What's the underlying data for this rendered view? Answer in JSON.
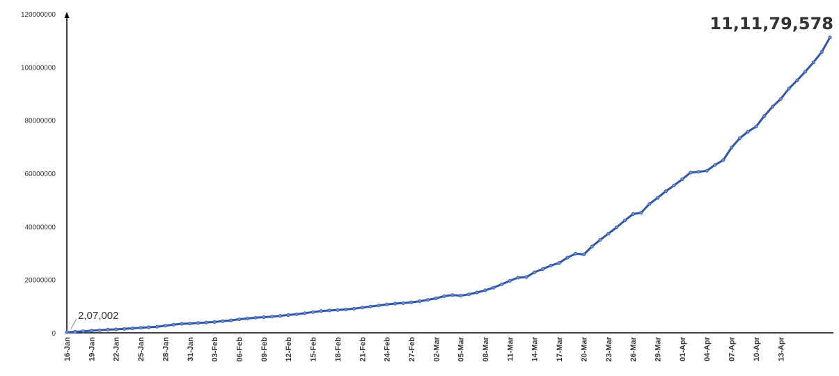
{
  "chart_data": {
    "type": "line",
    "title": "",
    "xlabel": "",
    "ylabel": "",
    "ylim": [
      0,
      120000000
    ],
    "y_ticks": [
      "0",
      "20000000",
      "40000000",
      "60000000",
      "80000000",
      "100000000",
      "120000000"
    ],
    "x_ticks": [
      "16-Jan",
      "19-Jan",
      "22-Jan",
      "25-Jan",
      "28-Jan",
      "31-Jan",
      "03-Feb",
      "06-Feb",
      "09-Feb",
      "12-Feb",
      "15-Feb",
      "18-Feb",
      "21-Feb",
      "24-Feb",
      "27-Feb",
      "02-Mar",
      "05-Mar",
      "08-Mar",
      "11-Mar",
      "14-Mar",
      "17-Mar",
      "20-Mar",
      "23-Mar",
      "26-Mar",
      "29-Mar",
      "01-Apr",
      "04-Apr",
      "07-Apr",
      "10-Apr",
      "13-Apr"
    ],
    "grid": false,
    "series_color": "#2f56a8",
    "annotations": {
      "start_value": "2,07,002",
      "end_value": "11,11,79,578"
    },
    "series": [
      {
        "values": [
          207002,
          400000,
          600000,
          800000,
          1000000,
          1200000,
          1300000,
          1500000,
          1700000,
          1900000,
          2100000,
          2300000,
          2700000,
          3100000,
          3400000,
          3500000,
          3700000,
          3900000,
          4100000,
          4400000,
          4700000,
          5100000,
          5400000,
          5700000,
          5900000,
          6100000,
          6400000,
          6700000,
          7000000,
          7400000,
          7800000,
          8200000,
          8400000,
          8600000,
          8800000,
          9100000,
          9500000,
          9900000,
          10300000,
          10700000,
          11000000,
          11200000,
          11500000,
          11900000,
          12400000,
          13000000,
          13800000,
          14200000,
          14000000,
          14500000,
          15200000,
          16000000,
          17000000,
          18300000,
          19600000,
          20800000,
          21000000,
          22800000,
          24000000,
          25300000,
          26300000,
          28300000,
          29800000,
          29500000,
          32500000,
          35000000,
          37300000,
          39700000,
          42300000,
          44700000,
          45200000,
          48500000,
          50800000,
          53300000,
          55500000,
          57800000,
          60300000,
          60600000,
          61000000,
          63200000,
          65000000,
          69700000,
          73200000,
          75700000,
          77600000,
          81600000,
          85100000,
          88000000,
          91900000,
          95000000,
          98300000,
          101800000,
          105700000,
          111179578
        ]
      }
    ]
  }
}
